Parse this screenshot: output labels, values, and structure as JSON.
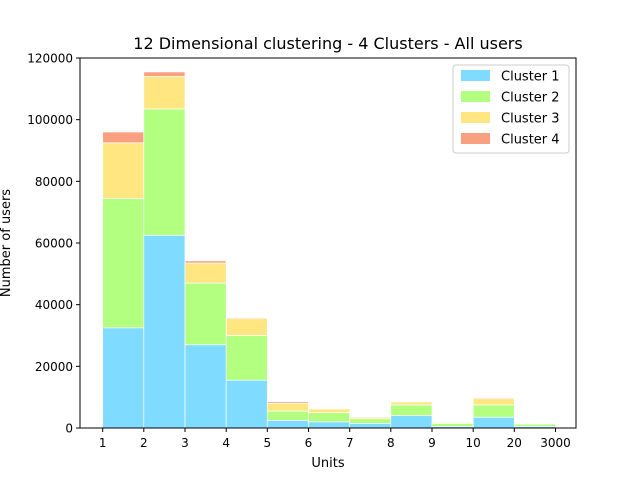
{
  "chart_data": {
    "type": "bar",
    "stacked": true,
    "title": "12 Dimensional clustering - 4 Clusters - All users",
    "xlabel": "Units",
    "ylabel": "Number of users",
    "x_tick_labels": [
      "1",
      "2",
      "3",
      "4",
      "5",
      "6",
      "7",
      "8",
      "9",
      "10",
      "20",
      "3000"
    ],
    "categories": [
      "1-2",
      "2-3",
      "3-4",
      "4-5",
      "5-6",
      "6-7",
      "7-8",
      "8-9",
      "9-10",
      "10-20",
      "20-3000"
    ],
    "ylim": [
      0,
      120000
    ],
    "y_ticks": [
      0,
      20000,
      40000,
      60000,
      80000,
      100000,
      120000
    ],
    "grid": false,
    "legend_position": "top-right",
    "series": [
      {
        "name": "Cluster 1",
        "color": "#7fdbff",
        "values": [
          32500,
          62500,
          27000,
          15500,
          2500,
          2000,
          1500,
          4000,
          500,
          3500,
          500
        ]
      },
      {
        "name": "Cluster 2",
        "color": "#b3ff80",
        "values": [
          42000,
          41000,
          20000,
          14500,
          3000,
          3000,
          1500,
          3500,
          1000,
          4000,
          800
        ]
      },
      {
        "name": "Cluster 3",
        "color": "#ffe680",
        "values": [
          18000,
          10500,
          6500,
          5500,
          2500,
          1200,
          500,
          1000,
          300,
          2000,
          200
        ]
      },
      {
        "name": "Cluster 4",
        "color": "#f8a07f",
        "values": [
          3500,
          1500,
          700,
          300,
          500,
          200,
          100,
          200,
          0,
          300,
          0
        ]
      }
    ]
  }
}
